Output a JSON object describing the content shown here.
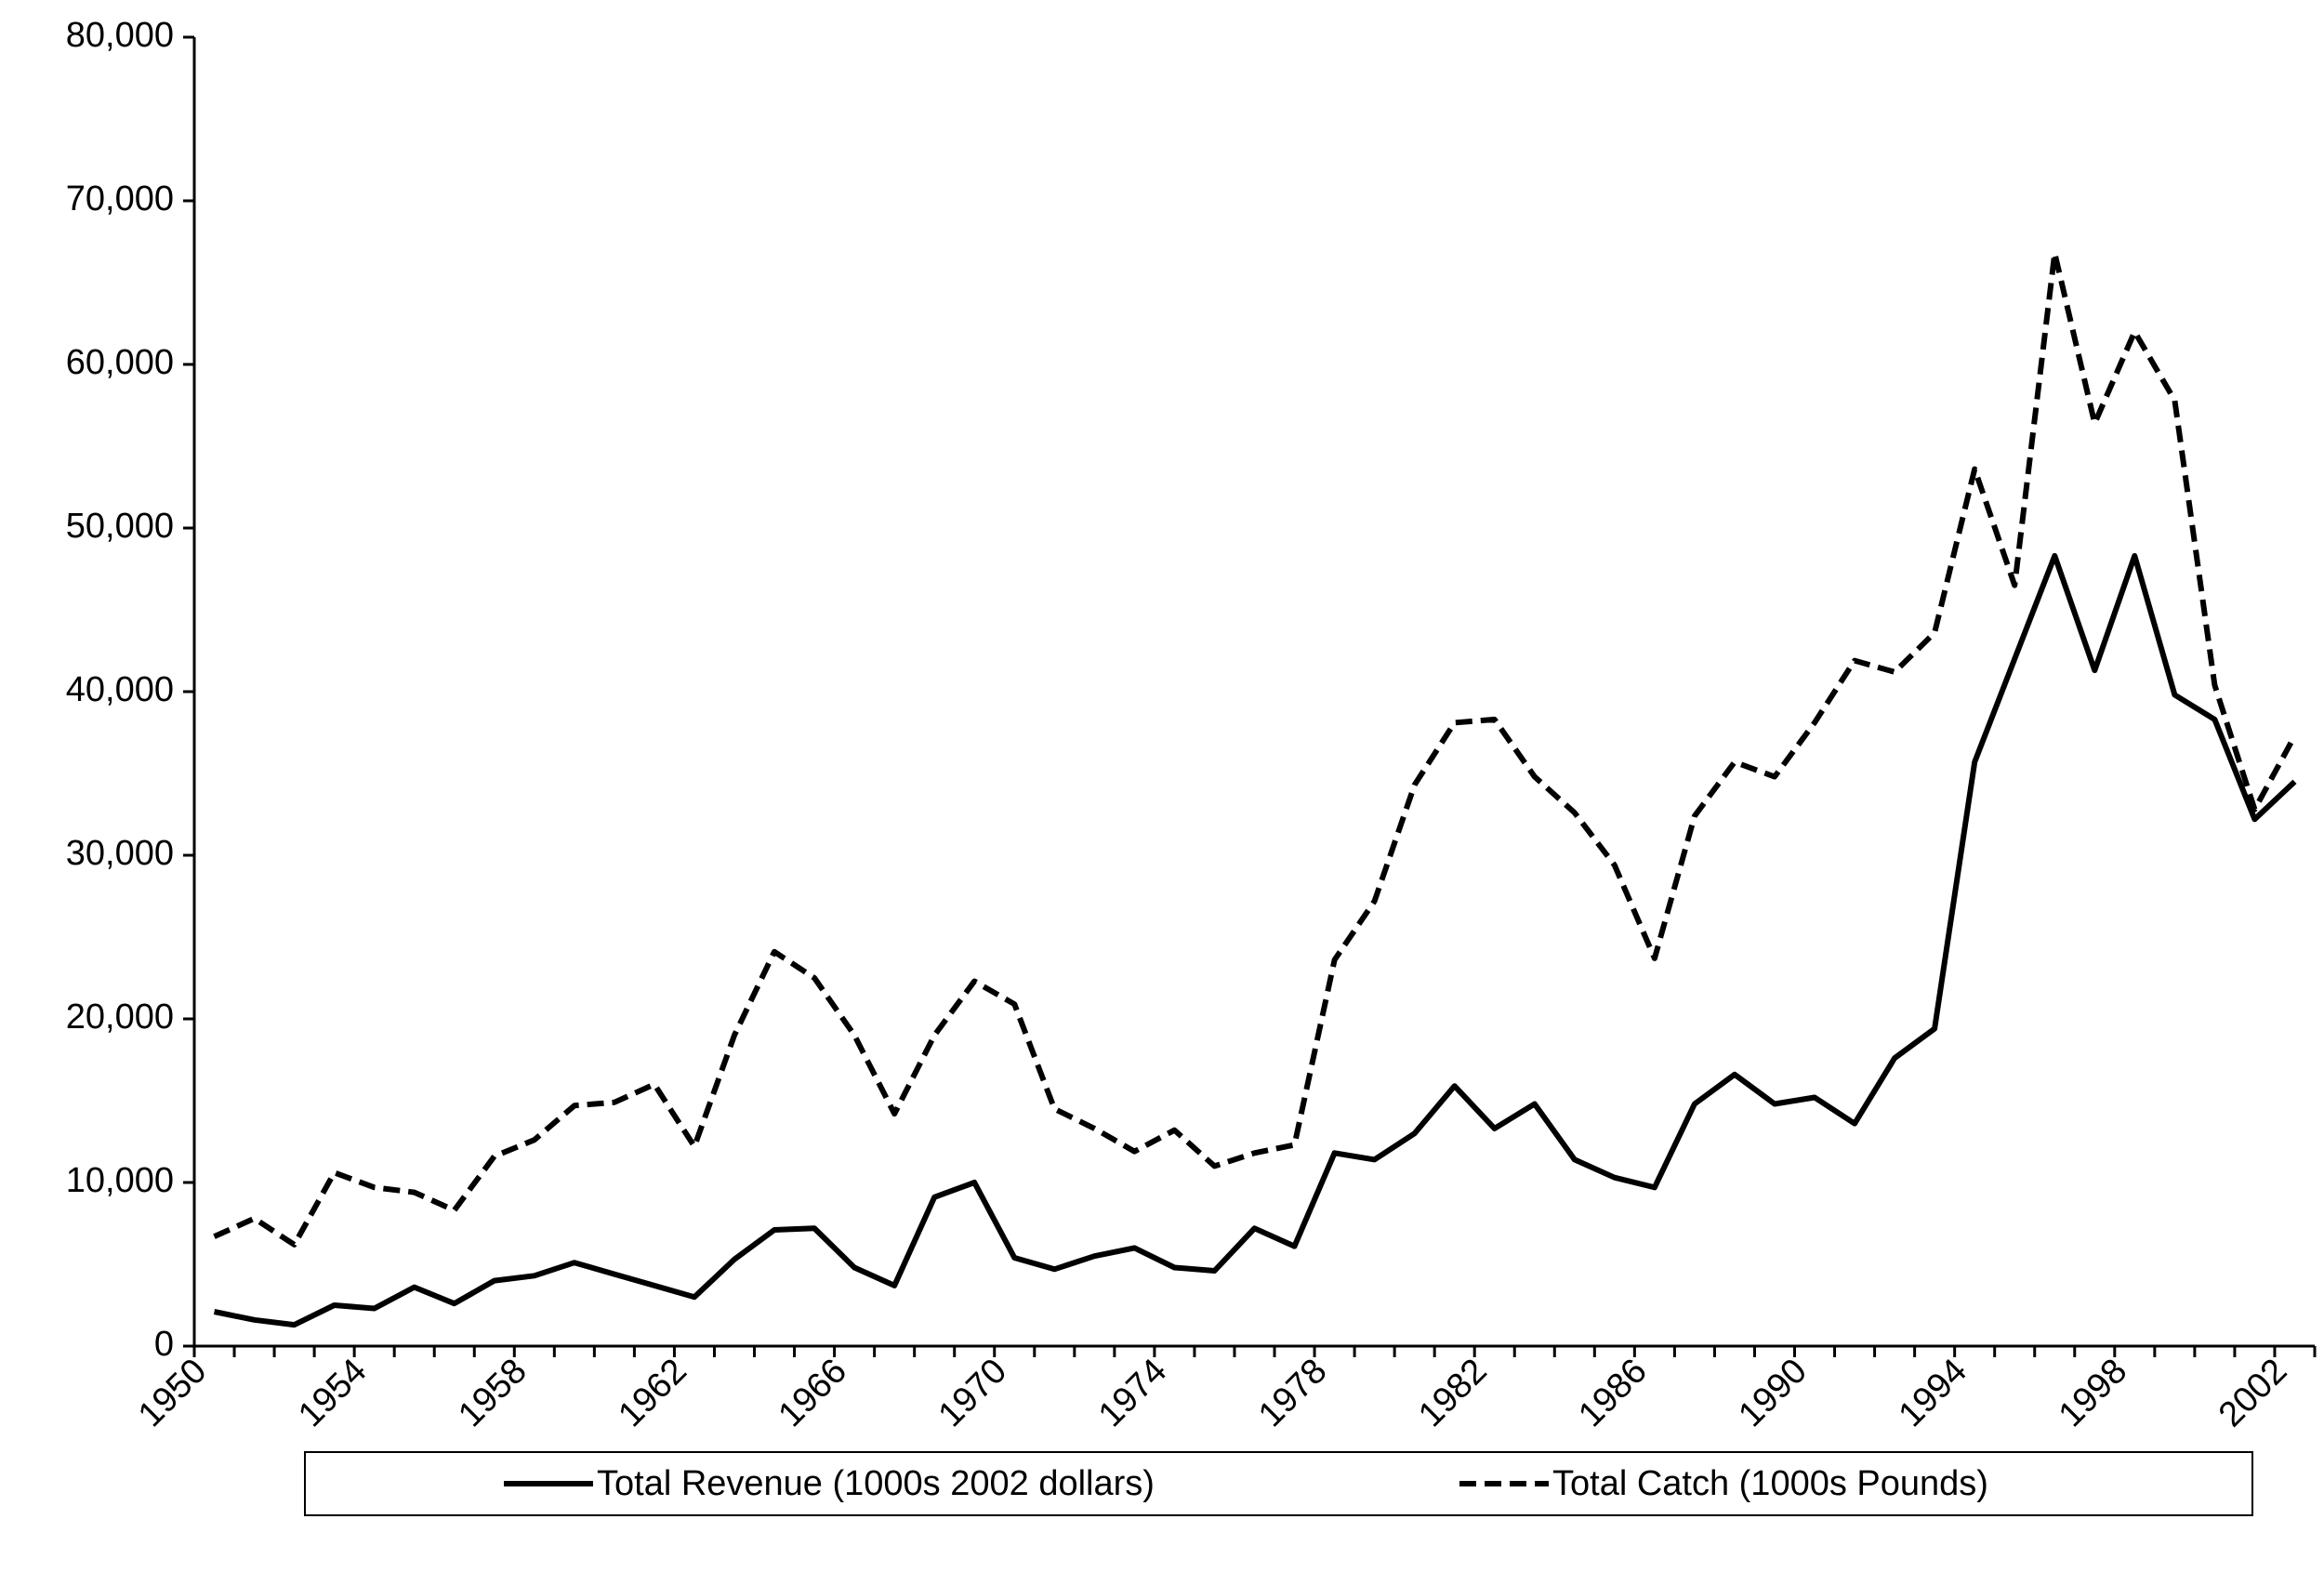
{
  "chart_data": {
    "type": "line",
    "categories": [
      "1950",
      null,
      null,
      null,
      "1954",
      null,
      null,
      null,
      "1958",
      null,
      null,
      null,
      "1962",
      null,
      null,
      null,
      "1966",
      null,
      null,
      null,
      "1970",
      null,
      null,
      null,
      "1974",
      null,
      null,
      null,
      "1978",
      null,
      null,
      null,
      "1982",
      null,
      null,
      null,
      "1986",
      null,
      null,
      null,
      "1990",
      null,
      null,
      null,
      "1994",
      null,
      null,
      null,
      "1998",
      null,
      null,
      null,
      "2002"
    ],
    "series": [
      {
        "name": "Total Revenue (1000s 2002 dollars)",
        "color": "#000000",
        "dash": "solid",
        "values": [
          2100,
          1600,
          1300,
          2500,
          2300,
          3600,
          2600,
          4000,
          4300,
          5100,
          4400,
          3700,
          3000,
          5300,
          7100,
          7200,
          4800,
          3700,
          9100,
          10000,
          5400,
          4700,
          5500,
          6000,
          4800,
          4600,
          7200,
          6100,
          11800,
          11400,
          13000,
          15900,
          13300,
          14800,
          11400,
          10300,
          9700,
          14800,
          16600,
          14800,
          15200,
          13600,
          17600,
          19400,
          35700,
          42000,
          48300,
          41300,
          48300,
          39800,
          38300,
          32200,
          34500
        ]
      },
      {
        "name": "Total Catch (1000s Pounds)",
        "color": "#000000",
        "dash": "dashed",
        "values": [
          6700,
          7800,
          6200,
          10600,
          9700,
          9400,
          8300,
          11600,
          12600,
          14700,
          14900,
          16000,
          12200,
          19000,
          24100,
          22500,
          19000,
          14200,
          19000,
          22300,
          20900,
          14500,
          13300,
          11900,
          13200,
          11000,
          11800,
          12300,
          23600,
          27200,
          34300,
          38100,
          38300,
          34800,
          32600,
          29400,
          23700,
          32400,
          35700,
          34800,
          38100,
          41900,
          41200,
          43600,
          53600,
          46500,
          66800,
          56400,
          62000,
          57800,
          40400,
          32800,
          37300
        ]
      }
    ],
    "ylim": [
      0,
      80000
    ],
    "yticks": [
      0,
      {
        "value": 10000,
        "label": "10,000"
      },
      {
        "value": 20000,
        "label": "20,000"
      },
      {
        "value": 30000,
        "label": "30,000"
      },
      {
        "value": 40000,
        "label": "40,000"
      },
      {
        "value": 50000,
        "label": "50,000"
      },
      {
        "value": 60000,
        "label": "60,000"
      },
      {
        "value": 70000,
        "label": "70,000"
      },
      {
        "value": 80000,
        "label": "80,000"
      }
    ],
    "grid": false,
    "legend": "bottom"
  }
}
